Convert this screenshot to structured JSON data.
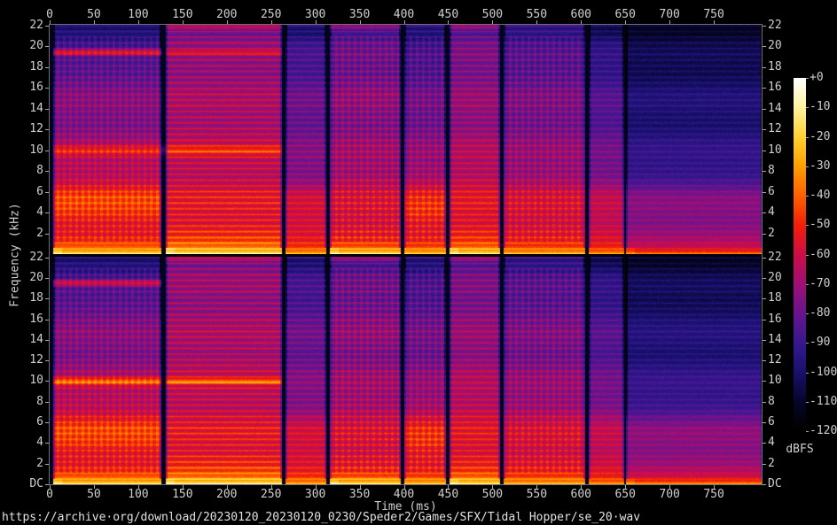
{
  "axes": {
    "x_label": "Time (ms)",
    "y_label": "Frequency (kHz)",
    "colorbar_label": "dBFS",
    "time_ticks_ms": [
      0,
      50,
      100,
      150,
      200,
      250,
      300,
      350,
      400,
      450,
      500,
      550,
      600,
      650,
      700,
      750
    ],
    "freq_ticks_panel1": [
      {
        "label": "22",
        "khz": 22
      },
      {
        "label": "20",
        "khz": 20
      },
      {
        "label": "18",
        "khz": 18
      },
      {
        "label": "16",
        "khz": 16
      },
      {
        "label": "14",
        "khz": 14
      },
      {
        "label": "12",
        "khz": 12
      },
      {
        "label": "10",
        "khz": 10
      },
      {
        "label": "8",
        "khz": 8
      },
      {
        "label": "6",
        "khz": 6
      },
      {
        "label": "4",
        "khz": 4
      },
      {
        "label": "2",
        "khz": 2
      }
    ],
    "freq_ticks_panel2": [
      {
        "label": "22",
        "khz": 22
      },
      {
        "label": "20",
        "khz": 20
      },
      {
        "label": "18",
        "khz": 18
      },
      {
        "label": "16",
        "khz": 16
      },
      {
        "label": "14",
        "khz": 14
      },
      {
        "label": "12",
        "khz": 12
      },
      {
        "label": "10",
        "khz": 10
      },
      {
        "label": "8",
        "khz": 8
      },
      {
        "label": "6",
        "khz": 6
      },
      {
        "label": "4",
        "khz": 4
      },
      {
        "label": "2",
        "khz": 2
      },
      {
        "label": "DC",
        "khz": 0
      }
    ],
    "colorbar_ticks_dbfs": [
      "+0",
      "-10",
      "-20",
      "-30",
      "-40",
      "-50",
      "-60",
      "-70",
      "-80",
      "-90",
      "-100",
      "-110",
      "-120"
    ]
  },
  "caption": {
    "file_url": "https://archive·org/download/20230120_20230120_0230/Speder2/Games/SFX/Tidal Hopper/se_20·wav"
  },
  "colors": {
    "background": "#000000",
    "text": "#cfcfcf",
    "axis": "#a8a8a8",
    "frame": "#6f6f6f"
  },
  "chart_data": {
    "type": "heatmap",
    "subtype": "audio-spectrogram",
    "channels": [
      "left",
      "right"
    ],
    "x_range_ms": [
      0,
      804
    ],
    "y_range_khz": [
      0,
      22.05
    ],
    "z_range_dbfs": [
      -120,
      0
    ],
    "xlabel": "Time (ms)",
    "ylabel": "Frequency (kHz)",
    "colorbar": "dBFS",
    "palette_stops": [
      {
        "t": 0.0,
        "rgb": [
          0,
          0,
          0
        ]
      },
      {
        "t": 0.083,
        "rgb": [
          7,
          5,
          44
        ]
      },
      {
        "t": 0.167,
        "rgb": [
          23,
          17,
          110
        ]
      },
      {
        "t": 0.25,
        "rgb": [
          56,
          23,
          145
        ]
      },
      {
        "t": 0.333,
        "rgb": [
          104,
          20,
          143
        ]
      },
      {
        "t": 0.417,
        "rgb": [
          159,
          15,
          117
        ]
      },
      {
        "t": 0.5,
        "rgb": [
          205,
          13,
          72
        ]
      },
      {
        "t": 0.583,
        "rgb": [
          242,
          31,
          8
        ]
      },
      {
        "t": 0.667,
        "rgb": [
          255,
          96,
          0
        ]
      },
      {
        "t": 0.75,
        "rgb": [
          255,
          158,
          0
        ]
      },
      {
        "t": 0.833,
        "rgb": [
          255,
          209,
          48
        ]
      },
      {
        "t": 0.917,
        "rgb": [
          255,
          242,
          158
        ]
      },
      {
        "t": 1.0,
        "rgb": [
          255,
          255,
          255
        ]
      }
    ],
    "band_freqs_khz": [
      0,
      0.4,
      1,
      2,
      3,
      4,
      5.5,
      7,
      9,
      12,
      15,
      18,
      20,
      21.5,
      22.05
    ],
    "harmonic_spacing_khz": 0.55,
    "noise_db": 6,
    "background_db": -114,
    "segments": [
      {
        "t0": 4,
        "t1": 126,
        "stripe_db": 10,
        "vertical_texture": true,
        "onset_flash": true,
        "nyquist_db": null,
        "bands_dbfs": [
          -10,
          -32,
          -46,
          -52,
          -50,
          -45,
          -44,
          -58,
          -63,
          -72,
          -74,
          -80,
          -88,
          -96,
          -96
        ]
      },
      {
        "t0": 131,
        "t1": 262,
        "stripe_db": 16,
        "vertical_texture": false,
        "onset_flash": true,
        "nyquist_db": -66,
        "bands_dbfs": [
          -6,
          -26,
          -42,
          -48,
          -52,
          -55,
          -55,
          -60,
          -62,
          -65,
          -68,
          -70,
          -72,
          -76,
          -70
        ]
      },
      {
        "t0": 266,
        "t1": 312,
        "stripe_db": 11,
        "vertical_texture": false,
        "onset_flash": false,
        "nyquist_db": null,
        "bands_dbfs": [
          -22,
          -40,
          -52,
          -55,
          -55,
          -58,
          -60,
          -70,
          -75,
          -78,
          -80,
          -85,
          -90,
          -98,
          -92
        ]
      },
      {
        "t0": 316,
        "t1": 396,
        "stripe_db": 14,
        "vertical_texture": true,
        "onset_flash": true,
        "nyquist_db": -74,
        "bands_dbfs": [
          -9,
          -30,
          -48,
          -52,
          -54,
          -56,
          -58,
          -62,
          -68,
          -72,
          -72,
          -76,
          -80,
          -86,
          -78
        ]
      },
      {
        "t0": 400,
        "t1": 447,
        "stripe_db": 12,
        "vertical_texture": true,
        "onset_flash": false,
        "nyquist_db": null,
        "bands_dbfs": [
          -18,
          -35,
          -50,
          -52,
          -50,
          -46,
          -50,
          -62,
          -70,
          -75,
          -78,
          -82,
          -88,
          -96,
          -90
        ]
      },
      {
        "t0": 451,
        "t1": 508,
        "stripe_db": 14,
        "vertical_texture": false,
        "onset_flash": true,
        "nyquist_db": -72,
        "bands_dbfs": [
          -10,
          -28,
          -45,
          -50,
          -53,
          -55,
          -56,
          -60,
          -65,
          -70,
          -72,
          -75,
          -78,
          -83,
          -76
        ]
      },
      {
        "t0": 512,
        "t1": 604,
        "stripe_db": 12,
        "vertical_texture": true,
        "onset_flash": false,
        "nyquist_db": null,
        "bands_dbfs": [
          -20,
          -38,
          -50,
          -53,
          -55,
          -56,
          -58,
          -64,
          -70,
          -74,
          -76,
          -80,
          -85,
          -92,
          -88
        ]
      },
      {
        "t0": 608,
        "t1": 648,
        "stripe_db": 9,
        "vertical_texture": false,
        "onset_flash": false,
        "nyquist_db": null,
        "bands_dbfs": [
          -26,
          -45,
          -55,
          -58,
          -60,
          -62,
          -64,
          -72,
          -78,
          -82,
          -85,
          -90,
          -95,
          -103,
          -100
        ]
      },
      {
        "t0": 650,
        "t1": 804,
        "stripe_db": 7,
        "vertical_texture": false,
        "onset_flash": true,
        "nyquist_db": null,
        "bands_dbfs": [
          -33,
          -56,
          -66,
          -70,
          -72,
          -74,
          -76,
          -85,
          -92,
          -96,
          -98,
          -102,
          -106,
          -110,
          -108
        ],
        "bands_dbfs_ch2": [
          -28,
          -52,
          -64,
          -69,
          -71,
          -73,
          -75,
          -84,
          -91,
          -95,
          -97,
          -101,
          -105,
          -110,
          -107
        ]
      }
    ],
    "tone_lines": [
      {
        "channel": 0,
        "f_khz": 19.45,
        "width_khz": 0.28,
        "boost_db": 34,
        "t0": 4,
        "t1": 126
      },
      {
        "channel": 0,
        "f_khz": 19.45,
        "width_khz": 0.25,
        "boost_db": 16,
        "t0": 131,
        "t1": 262
      },
      {
        "channel": 0,
        "f_khz": 10.0,
        "width_khz": 0.45,
        "boost_db": 16,
        "t0": 4,
        "t1": 262
      },
      {
        "channel": 1,
        "f_khz": 19.55,
        "width_khz": 0.28,
        "boost_db": 30,
        "t0": 4,
        "t1": 126
      },
      {
        "channel": 1,
        "f_khz": 10.0,
        "width_khz": 0.35,
        "boost_db": 30,
        "t0": 4,
        "t1": 126
      },
      {
        "channel": 1,
        "f_khz": 10.0,
        "width_khz": 0.3,
        "boost_db": 28,
        "t0": 131,
        "t1": 262
      }
    ]
  }
}
